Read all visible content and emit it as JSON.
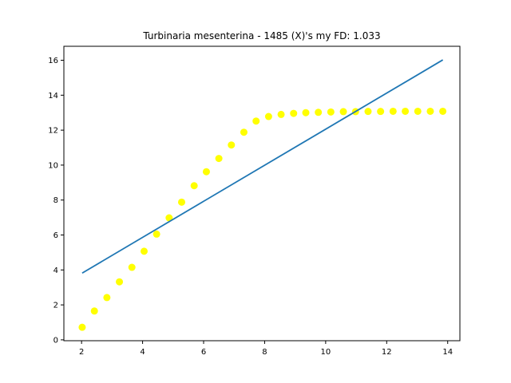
{
  "chart_data": {
    "type": "scatter",
    "title": "Turbinaria mesenterina - 1485 (X)'s my FD: 1.033",
    "xlabel": "",
    "ylabel": "",
    "xlim": [
      1.42,
      14.4
    ],
    "ylim": [
      -0.05,
      16.8
    ],
    "grid": false,
    "xticks": [
      2,
      4,
      6,
      8,
      10,
      12,
      14
    ],
    "yticks": [
      0,
      2,
      4,
      6,
      8,
      10,
      12,
      14,
      16
    ],
    "series": [
      {
        "kind": "scatter",
        "color": "#ffff00",
        "points": [
          [
            2.02,
            0.72
          ],
          [
            2.42,
            1.65
          ],
          [
            2.83,
            2.42
          ],
          [
            3.24,
            3.32
          ],
          [
            3.65,
            4.15
          ],
          [
            4.05,
            5.07
          ],
          [
            4.46,
            6.05
          ],
          [
            4.87,
            6.98
          ],
          [
            5.28,
            7.88
          ],
          [
            5.69,
            8.82
          ],
          [
            6.09,
            9.62
          ],
          [
            6.5,
            10.38
          ],
          [
            6.91,
            11.15
          ],
          [
            7.32,
            11.88
          ],
          [
            7.72,
            12.52
          ],
          [
            8.13,
            12.78
          ],
          [
            8.54,
            12.9
          ],
          [
            8.95,
            12.96
          ],
          [
            9.35,
            13.0
          ],
          [
            9.76,
            13.02
          ],
          [
            10.17,
            13.04
          ],
          [
            10.58,
            13.06
          ],
          [
            10.98,
            13.06
          ],
          [
            11.39,
            13.07
          ],
          [
            11.8,
            13.07
          ],
          [
            12.21,
            13.08
          ],
          [
            12.61,
            13.08
          ],
          [
            13.02,
            13.08
          ],
          [
            13.43,
            13.08
          ],
          [
            13.84,
            13.08
          ]
        ]
      },
      {
        "kind": "line",
        "color": "#1f77b4",
        "points": [
          [
            2.02,
            3.82
          ],
          [
            13.84,
            16.02
          ]
        ]
      }
    ]
  }
}
